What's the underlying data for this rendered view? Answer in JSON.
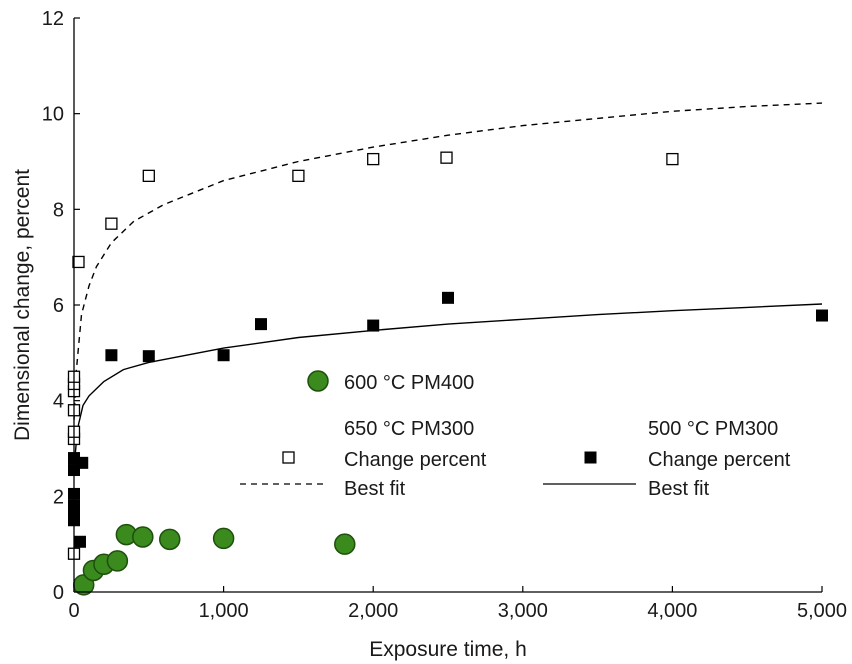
{
  "chart_data": {
    "type": "scatter",
    "xlabel": "Exposure time, h",
    "ylabel": "Dimensional change, percent",
    "xlim": [
      0,
      5000
    ],
    "ylim": [
      0,
      12
    ],
    "x_ticks": [
      0,
      1000,
      2000,
      3000,
      4000,
      5000
    ],
    "x_tick_labels": [
      "0",
      "1,000",
      "2,000",
      "3,000",
      "4,000",
      "5,000"
    ],
    "y_ticks": [
      0,
      2,
      4,
      6,
      8,
      10,
      12
    ],
    "y_tick_labels": [
      "0",
      "2",
      "4",
      "6",
      "8",
      "10",
      "12"
    ],
    "grid": false,
    "series": [
      {
        "name": "600 °C PM400",
        "marker": "circle-filled",
        "color": "#3a8a1e",
        "edge_color": "#1f4f0d",
        "points": [
          [
            65,
            0.15
          ],
          [
            130,
            0.45
          ],
          [
            200,
            0.58
          ],
          [
            290,
            0.65
          ],
          [
            350,
            1.2
          ],
          [
            460,
            1.15
          ],
          [
            640,
            1.1
          ],
          [
            1000,
            1.12
          ],
          [
            1810,
            1.0
          ]
        ]
      },
      {
        "name": "650 °C PM300",
        "subname": "Change percent",
        "marker": "square-open",
        "color": "#000000",
        "points": [
          [
            0,
            0.8
          ],
          [
            0,
            3.2
          ],
          [
            0,
            3.35
          ],
          [
            0,
            3.8
          ],
          [
            0,
            4.2
          ],
          [
            0,
            4.35
          ],
          [
            0,
            4.5
          ],
          [
            30,
            6.9
          ],
          [
            250,
            7.7
          ],
          [
            500,
            8.7
          ],
          [
            1500,
            8.7
          ],
          [
            2000,
            9.05
          ],
          [
            2490,
            9.08
          ],
          [
            4000,
            9.05
          ]
        ]
      },
      {
        "name": "500 °C PM300",
        "subname": "Change percent",
        "marker": "square-filled",
        "color": "#000000",
        "points": [
          [
            0,
            1.5
          ],
          [
            0,
            1.65
          ],
          [
            0,
            1.8
          ],
          [
            0,
            2.05
          ],
          [
            0,
            2.55
          ],
          [
            0,
            2.8
          ],
          [
            40,
            1.05
          ],
          [
            55,
            2.7
          ],
          [
            250,
            4.95
          ],
          [
            500,
            4.93
          ],
          [
            1000,
            4.95
          ],
          [
            1250,
            5.6
          ],
          [
            2000,
            5.57
          ],
          [
            2500,
            6.15
          ],
          [
            5000,
            5.78
          ]
        ]
      }
    ],
    "fits": [
      {
        "name": "Best fit",
        "for_series": "650 °C PM300",
        "style": "dashed",
        "points": [
          [
            0,
            3.6
          ],
          [
            15,
            4.6
          ],
          [
            50,
            5.8
          ],
          [
            100,
            6.4
          ],
          [
            150,
            6.8
          ],
          [
            250,
            7.3
          ],
          [
            400,
            7.75
          ],
          [
            600,
            8.1
          ],
          [
            1000,
            8.6
          ],
          [
            1500,
            9.0
          ],
          [
            2000,
            9.3
          ],
          [
            2500,
            9.55
          ],
          [
            3000,
            9.75
          ],
          [
            3500,
            9.9
          ],
          [
            4000,
            10.05
          ],
          [
            4500,
            10.15
          ],
          [
            5000,
            10.22
          ]
        ]
      },
      {
        "name": "Best fit",
        "for_series": "500 °C PM300",
        "style": "solid",
        "points": [
          [
            0,
            2.6
          ],
          [
            15,
            3.1
          ],
          [
            30,
            3.5
          ],
          [
            60,
            3.9
          ],
          [
            100,
            4.1
          ],
          [
            200,
            4.4
          ],
          [
            330,
            4.65
          ],
          [
            500,
            4.8
          ],
          [
            1000,
            5.1
          ],
          [
            1500,
            5.32
          ],
          [
            2000,
            5.47
          ],
          [
            2500,
            5.6
          ],
          [
            3000,
            5.7
          ],
          [
            3500,
            5.8
          ],
          [
            4000,
            5.88
          ],
          [
            4500,
            5.95
          ],
          [
            5000,
            6.02
          ]
        ]
      }
    ],
    "legend": {
      "pm400_label": "600 °C PM400",
      "pm300_650_title": "650 °C PM300",
      "pm300_650_marker_label": "Change percent",
      "pm300_650_line_label": "Best fit",
      "pm300_500_title": "500 °C PM300",
      "pm300_500_marker_label": "Change percent",
      "pm300_500_line_label": "Best fit"
    }
  }
}
